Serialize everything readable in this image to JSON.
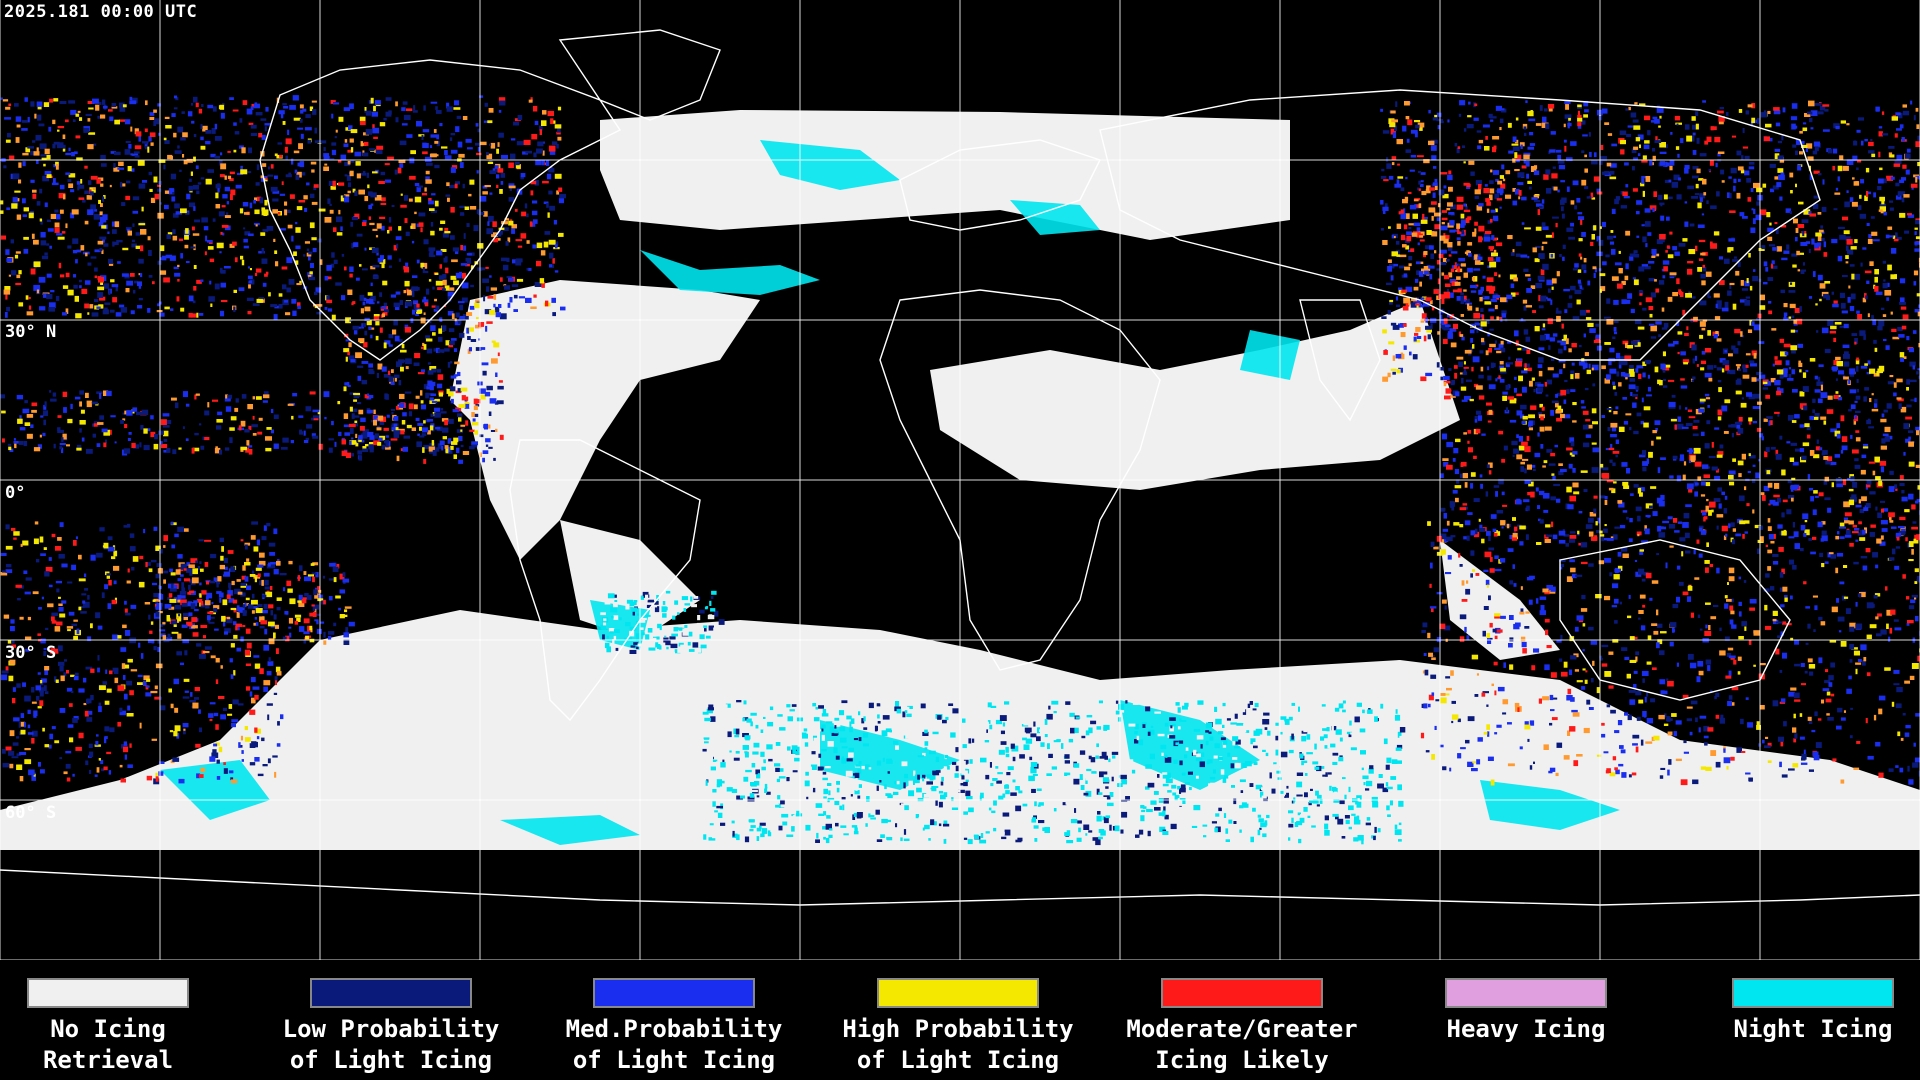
{
  "header": {
    "timestamp": "2025.181 00:00 UTC"
  },
  "lat_labels": [
    "30° N",
    "0°",
    "30° S",
    "60° S"
  ],
  "colors": {
    "background": "#000000",
    "no_icing": "#f0f0f0",
    "low_prob": "#0a1a7a",
    "med_prob": "#1a2ef0",
    "high_prob": "#f5e800",
    "moderate": "#ff1a1a",
    "heavy": "#e0a0e0",
    "night": "#00e6f0",
    "orange": "#ff9a30",
    "coast": "#ffffff",
    "grid": "#ffffff"
  },
  "legend": [
    {
      "label": "No Icing\nRetrieval",
      "color": "#f0f0f0"
    },
    {
      "label": "Low Probability\nof Light Icing",
      "color": "#0a1a7a"
    },
    {
      "label": "Med.Probability\nof Light Icing",
      "color": "#1a2ef0"
    },
    {
      "label": "High Probability\nof Light Icing",
      "color": "#f5e800"
    },
    {
      "label": "Moderate/Greater\nIcing Likely",
      "color": "#ff1a1a"
    },
    {
      "label": "Heavy Icing",
      "color": "#e0a0e0"
    },
    {
      "label": "Night Icing",
      "color": "#00e6f0"
    }
  ]
}
